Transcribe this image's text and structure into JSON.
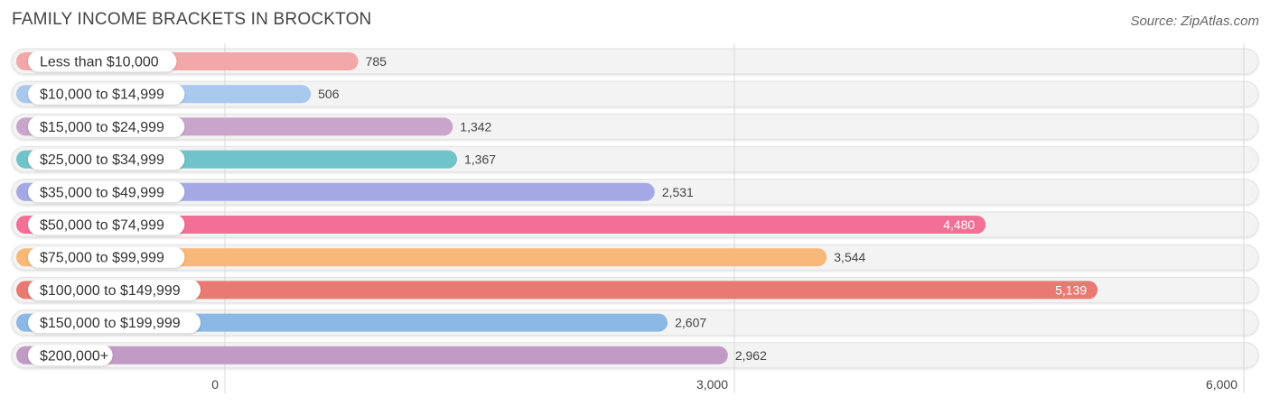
{
  "title": "FAMILY INCOME BRACKETS IN BROCKTON",
  "source": "Source: ZipAtlas.com",
  "chart_data": {
    "type": "bar",
    "orientation": "horizontal",
    "title": "FAMILY INCOME BRACKETS IN BROCKTON",
    "xlabel": "",
    "ylabel": "",
    "xlim": [
      0,
      6000
    ],
    "ticks": [
      0,
      3000,
      6000
    ],
    "tick_labels": [
      "0",
      "3,000",
      "6,000"
    ],
    "grid": true,
    "categories": [
      "Less than $10,000",
      "$10,000 to $14,999",
      "$15,000 to $24,999",
      "$25,000 to $34,999",
      "$35,000 to $49,999",
      "$50,000 to $74,999",
      "$75,000 to $99,999",
      "$100,000 to $149,999",
      "$150,000 to $199,999",
      "$200,000+"
    ],
    "values": [
      785,
      506,
      1342,
      1367,
      2531,
      4480,
      3544,
      5139,
      2607,
      2962
    ],
    "value_labels": [
      "785",
      "506",
      "1,342",
      "1,367",
      "2,531",
      "4,480",
      "3,544",
      "5,139",
      "2,607",
      "2,962"
    ],
    "colors": [
      "#f2a8a8",
      "#a9c8ee",
      "#c9a5cc",
      "#6fc3c9",
      "#a4a9e6",
      "#f27096",
      "#f8b877",
      "#e97a72",
      "#8cb8e6",
      "#c19ac6"
    ]
  }
}
